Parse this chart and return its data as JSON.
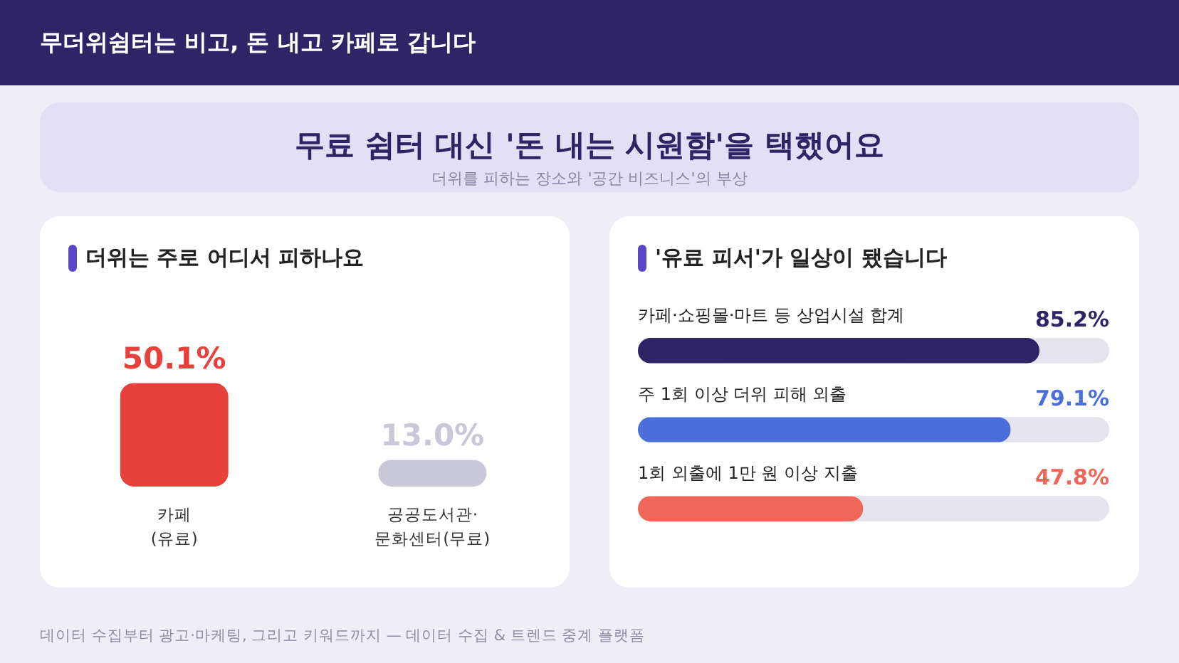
{
  "chart_data": [
    {
      "type": "bar",
      "title": "더위는 주로 어디서 피하나요",
      "categories": [
        "카페\n(유료)",
        "공공도서관·\n문화센터(무료)"
      ],
      "values": [
        50.1,
        13.0
      ],
      "colors": [
        "#e8403a",
        "#c9c8d8"
      ],
      "value_labels": [
        "50.1%",
        "13.0%"
      ],
      "annotations": [
        "무더위쉼터는 비고, 돈 내고 카페로 갑니다",
        "무료 쉼터 대신 '돈 내는 시원함'을 택했어요",
        "더위를 피하는 장소와 '공간 비즈니스'의 부상",
        "데이터 수집부터 광고·마케팅, 그리고 키워드까지 — 데이터 수집 & 트렌드 중계 플랫폼"
      ]
    },
    {
      "type": "bar",
      "orientation": "horizontal",
      "title": "'유료 피서'가 일상이 됐습니다",
      "categories": [
        "카페·쇼핑몰·마트 등 상업시설 합계",
        "주 1회 이상 더위 피해 외출",
        "1회 외출에 1만 원 이상 지출"
      ],
      "values": [
        85.2,
        79.1,
        47.8
      ],
      "colors": [
        "#2e2466",
        "#4a6fdc",
        "#f0675a"
      ],
      "value_labels": [
        "85.2%",
        "79.1%",
        "47.8%"
      ],
      "xlim": [
        0,
        100
      ]
    }
  ]
}
